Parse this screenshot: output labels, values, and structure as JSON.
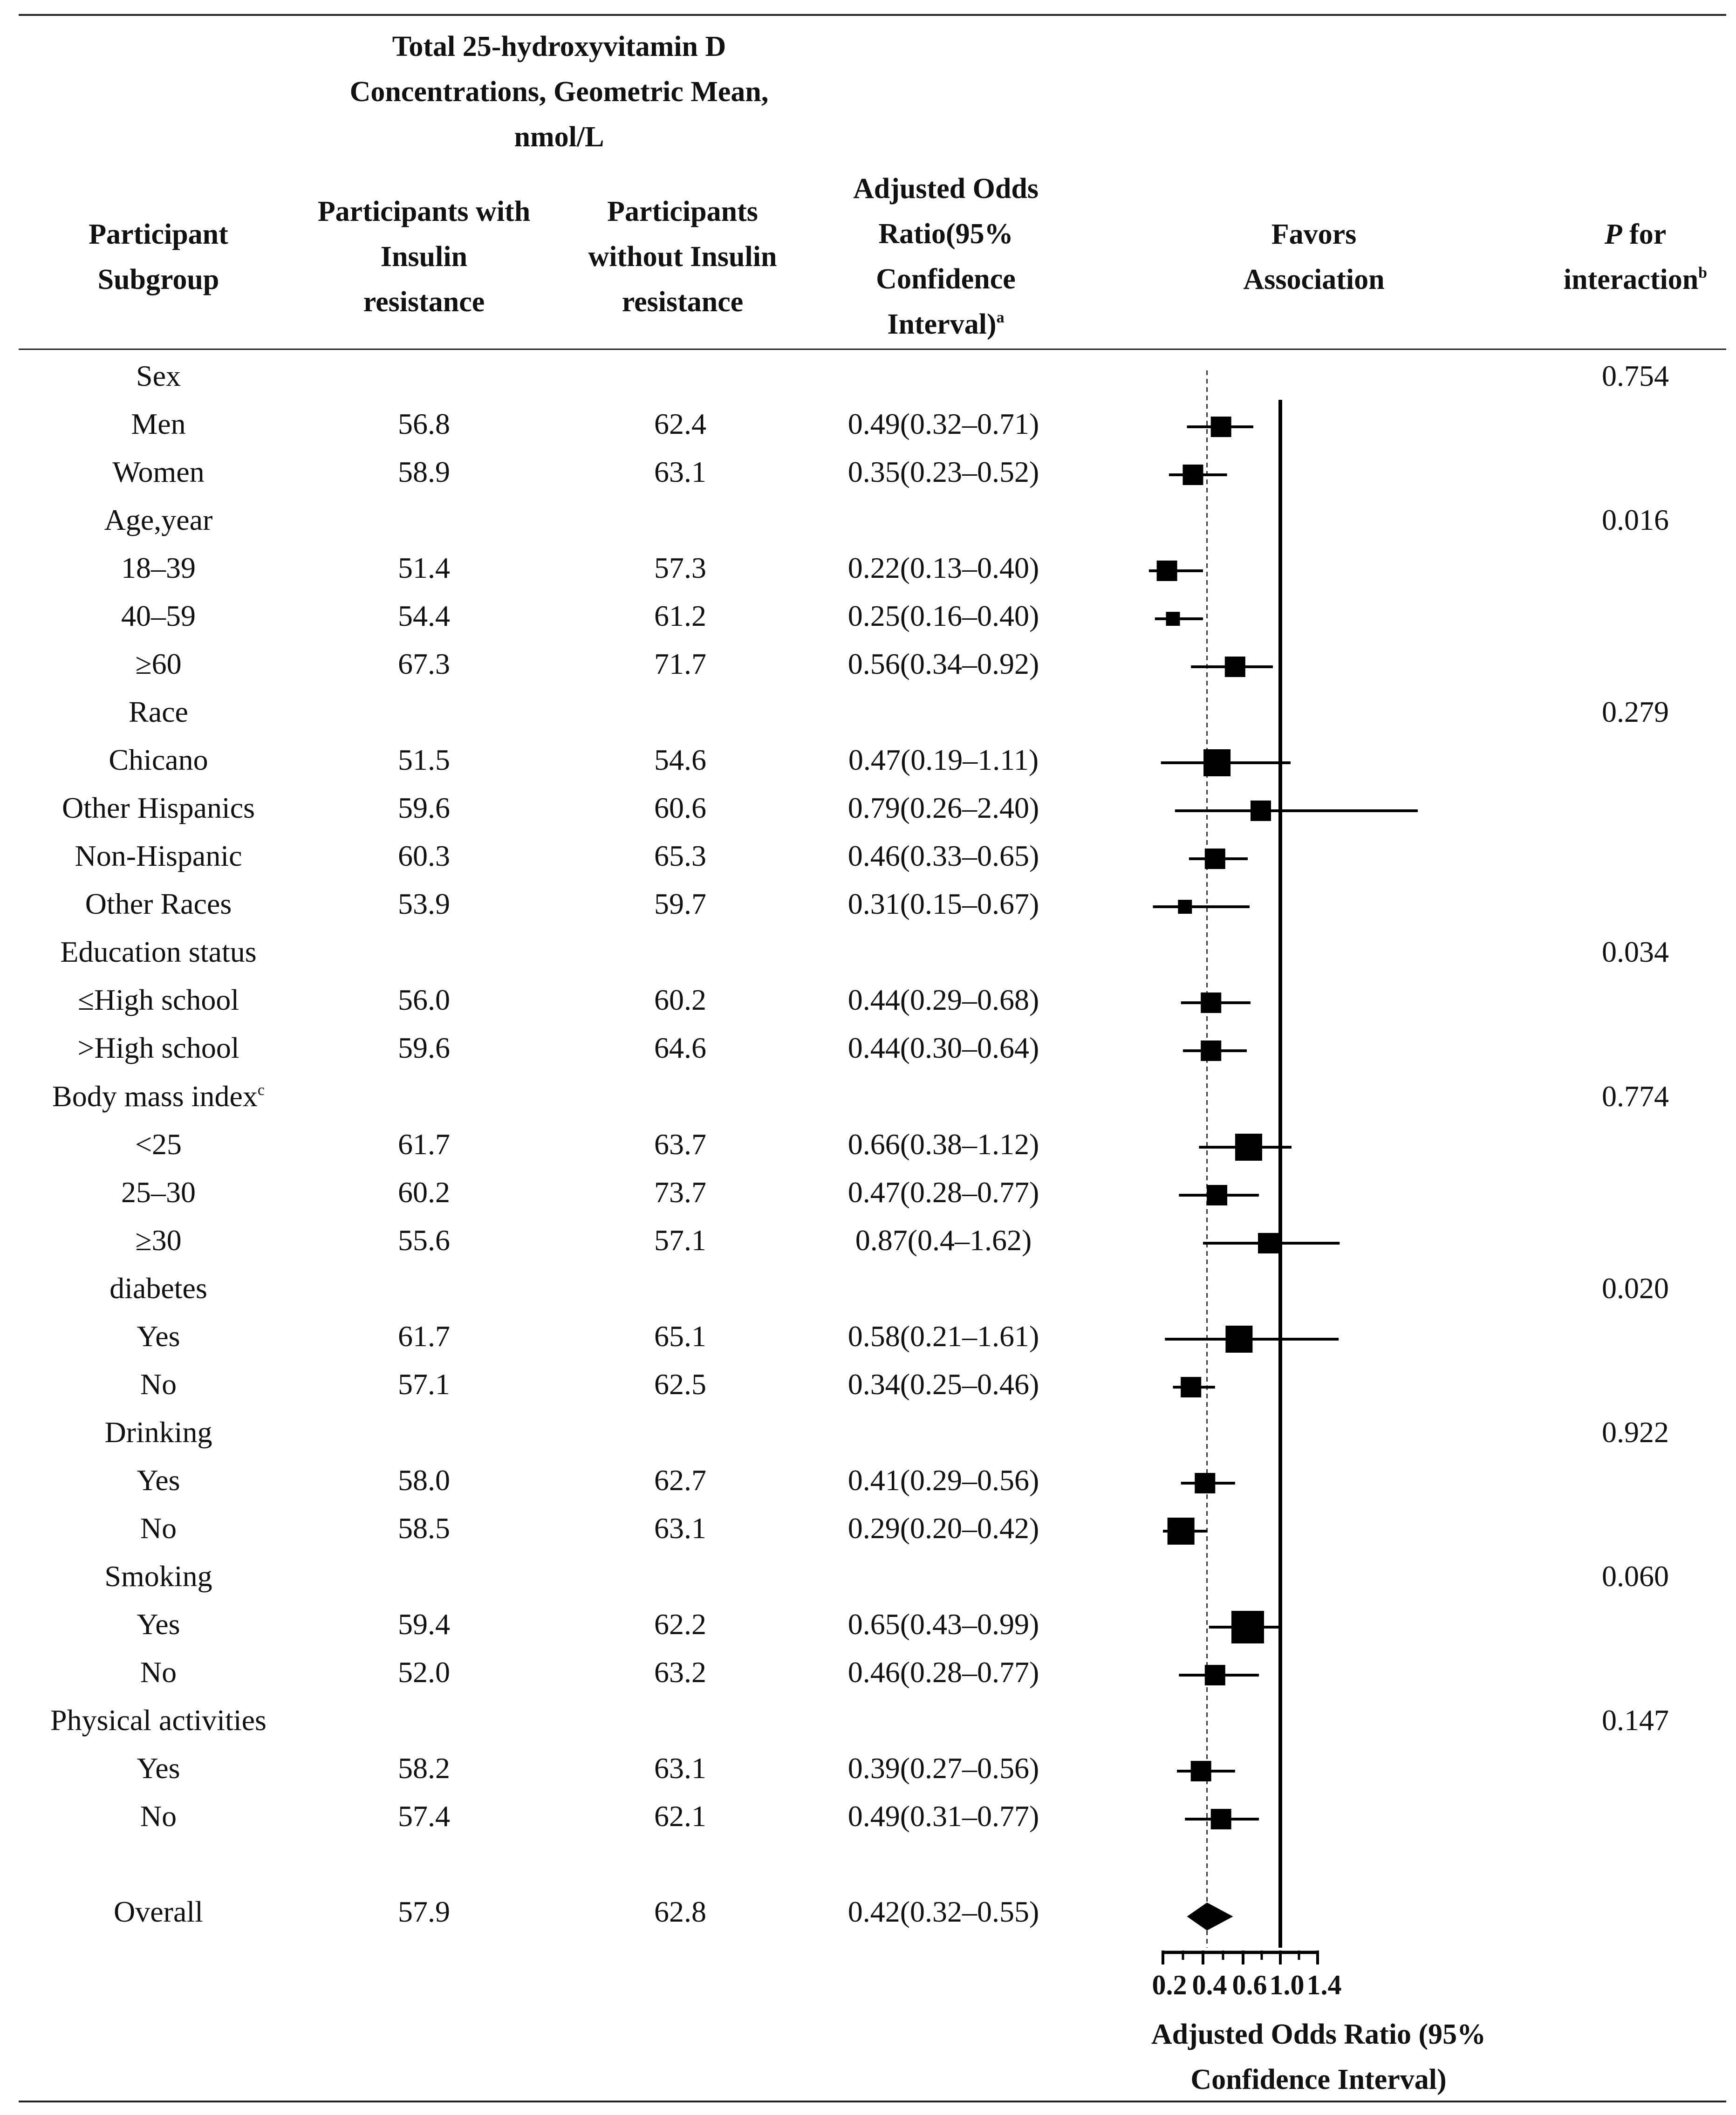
{
  "header": {
    "group_title": [
      "Total 25-hydroxyvitamin D",
      "Concentrations, Geometric Mean,",
      "nmol/L"
    ],
    "col_subgroup": [
      "Participant",
      "Subgroup"
    ],
    "col_with": [
      "Participants with",
      "Insulin",
      "resistance"
    ],
    "col_without": [
      "Participants",
      "without Insulin",
      "resistance"
    ],
    "col_or": [
      "Adjusted Odds",
      "Ratio(95%",
      "Confidence",
      "Interval)"
    ],
    "col_or_sup": "a",
    "col_favors": [
      "Favors",
      "Association"
    ],
    "col_p_pre": "P",
    "col_p_line1_rest": " for",
    "col_p_line2": "interaction",
    "col_p_sup": "b"
  },
  "rows": [
    {
      "label": "Sex",
      "p": "0.754"
    },
    {
      "label": "Men",
      "with": "56.8",
      "without": "62.4",
      "or_text": "0.49(0.32–0.71)"
    },
    {
      "label": "Women",
      "with": "58.9",
      "without": "63.1",
      "or_text": "0.35(0.23–0.52)"
    },
    {
      "label": "Age,year",
      "p": "0.016"
    },
    {
      "label": "18–39",
      "with": "51.4",
      "without": "57.3",
      "or_text": "0.22(0.13–0.40)"
    },
    {
      "label": "40–59",
      "with": "54.4",
      "without": "61.2",
      "or_text": "0.25(0.16–0.40)"
    },
    {
      "label": "≥60",
      "with": "67.3",
      "without": "71.7",
      "or_text": "0.56(0.34–0.92)"
    },
    {
      "label": "Race",
      "p": "0.279"
    },
    {
      "label": "Chicano",
      "with": "51.5",
      "without": "54.6",
      "or_text": "0.47(0.19–1.11)"
    },
    {
      "label": "Other Hispanics",
      "with": "59.6",
      "without": "60.6",
      "or_text": "0.79(0.26–2.40)"
    },
    {
      "label": "Non-Hispanic",
      "with": "60.3",
      "without": "65.3",
      "or_text": "0.46(0.33–0.65)"
    },
    {
      "label": "Other Races",
      "with": "53.9",
      "without": "59.7",
      "or_text": "0.31(0.15–0.67)"
    },
    {
      "label": "Education status",
      "p": "0.034"
    },
    {
      "label": "≤High school",
      "with": "56.0",
      "without": "60.2",
      "or_text": "0.44(0.29–0.68)"
    },
    {
      "label": ">High school",
      "with": "59.6",
      "without": "64.6",
      "or_text": "0.44(0.30–0.64)"
    },
    {
      "label": "Body mass index",
      "label_sup": "c",
      "p": "0.774"
    },
    {
      "label": "<25",
      "with": "61.7",
      "without": "63.7",
      "or_text": "0.66(0.38–1.12)"
    },
    {
      "label": "25–30",
      "with": "60.2",
      "without": "73.7",
      "or_text": "0.47(0.28–0.77)"
    },
    {
      "label": "≥30",
      "with": "55.6",
      "without": "57.1",
      "or_text": "0.87(0.4–1.62)"
    },
    {
      "label": "diabetes",
      "p": "0.020"
    },
    {
      "label": "Yes",
      "with": "61.7",
      "without": "65.1",
      "or_text": "0.58(0.21–1.61)"
    },
    {
      "label": "No",
      "with": "57.1",
      "without": "62.5",
      "or_text": "0.34(0.25–0.46)"
    },
    {
      "label": "Drinking",
      "p": "0.922"
    },
    {
      "label": "Yes",
      "with": "58.0",
      "without": "62.7",
      "or_text": "0.41(0.29–0.56)"
    },
    {
      "label": "No",
      "with": "58.5",
      "without": "63.1",
      "or_text": "0.29(0.20–0.42)"
    },
    {
      "label": "Smoking",
      "p": "0.060"
    },
    {
      "label": "Yes",
      "with": "59.4",
      "without": "62.2",
      "or_text": "0.65(0.43–0.99)"
    },
    {
      "label": "No",
      "with": "52.0",
      "without": "63.2",
      "or_text": "0.46(0.28–0.77)"
    },
    {
      "label": "Physical activities",
      "p": "0.147"
    },
    {
      "label": "Yes",
      "with": "58.2",
      "without": "63.1",
      "or_text": "0.39(0.27–0.56)"
    },
    {
      "label": "No",
      "with": "57.4",
      "without": "62.1",
      "or_text": "0.49(0.31–0.77)"
    }
  ],
  "overall": {
    "label": "Overall",
    "with": "57.9",
    "without": "62.8",
    "or_text": "0.42(0.32–0.55)"
  },
  "chart_data": {
    "type": "forest",
    "title": "Favors Association",
    "xlabel": "Adjusted Odds Ratio (95% Confidence Interval)",
    "xticks": [
      0.2,
      0.4,
      0.6,
      1.0,
      1.4
    ],
    "xtick_labels": [
      "0.2",
      "0.4",
      "0.6",
      "1.0",
      "1.4"
    ],
    "reference_solid": 1.0,
    "reference_dashed": 0.42,
    "points": [
      {
        "name": "Men",
        "or": 0.49,
        "low": 0.32,
        "high": 0.71,
        "weight": 2
      },
      {
        "name": "Women",
        "or": 0.35,
        "low": 0.23,
        "high": 0.52,
        "weight": 2
      },
      {
        "name": "18–39",
        "or": 0.22,
        "low": 0.13,
        "high": 0.4,
        "weight": 2
      },
      {
        "name": "40–59",
        "or": 0.25,
        "low": 0.16,
        "high": 0.4,
        "weight": 1
      },
      {
        "name": "≥60",
        "or": 0.56,
        "low": 0.34,
        "high": 0.92,
        "weight": 2
      },
      {
        "name": "Chicano",
        "or": 0.47,
        "low": 0.19,
        "high": 1.11,
        "weight": 3
      },
      {
        "name": "Other Hispanics",
        "or": 0.79,
        "low": 0.26,
        "high": 2.4,
        "weight": 2
      },
      {
        "name": "Non-Hispanic",
        "or": 0.46,
        "low": 0.33,
        "high": 0.65,
        "weight": 2
      },
      {
        "name": "Other Races",
        "or": 0.31,
        "low": 0.15,
        "high": 0.67,
        "weight": 1
      },
      {
        "name": "≤High school",
        "or": 0.44,
        "low": 0.29,
        "high": 0.68,
        "weight": 2
      },
      {
        "name": ">High school",
        "or": 0.44,
        "low": 0.3,
        "high": 0.64,
        "weight": 2
      },
      {
        "name": "<25",
        "or": 0.66,
        "low": 0.38,
        "high": 1.12,
        "weight": 3
      },
      {
        "name": "25–30",
        "or": 0.47,
        "low": 0.28,
        "high": 0.77,
        "weight": 2
      },
      {
        "name": "≥30",
        "or": 0.87,
        "low": 0.4,
        "high": 1.62,
        "weight": 2
      },
      {
        "name": "Yes",
        "or": 0.58,
        "low": 0.21,
        "high": 1.61,
        "weight": 3
      },
      {
        "name": "No",
        "or": 0.34,
        "low": 0.25,
        "high": 0.46,
        "weight": 2
      },
      {
        "name": "Yes",
        "or": 0.41,
        "low": 0.29,
        "high": 0.56,
        "weight": 2
      },
      {
        "name": "No",
        "or": 0.29,
        "low": 0.2,
        "high": 0.42,
        "weight": 3
      },
      {
        "name": "Yes",
        "or": 0.65,
        "low": 0.43,
        "high": 0.99,
        "weight": 4
      },
      {
        "name": "No",
        "or": 0.46,
        "low": 0.28,
        "high": 0.77,
        "weight": 2
      },
      {
        "name": "Yes",
        "or": 0.39,
        "low": 0.27,
        "high": 0.56,
        "weight": 2
      },
      {
        "name": "No",
        "or": 0.49,
        "low": 0.31,
        "high": 0.77,
        "weight": 2
      }
    ],
    "overall": {
      "name": "Overall",
      "or": 0.42,
      "low": 0.32,
      "high": 0.55
    }
  }
}
